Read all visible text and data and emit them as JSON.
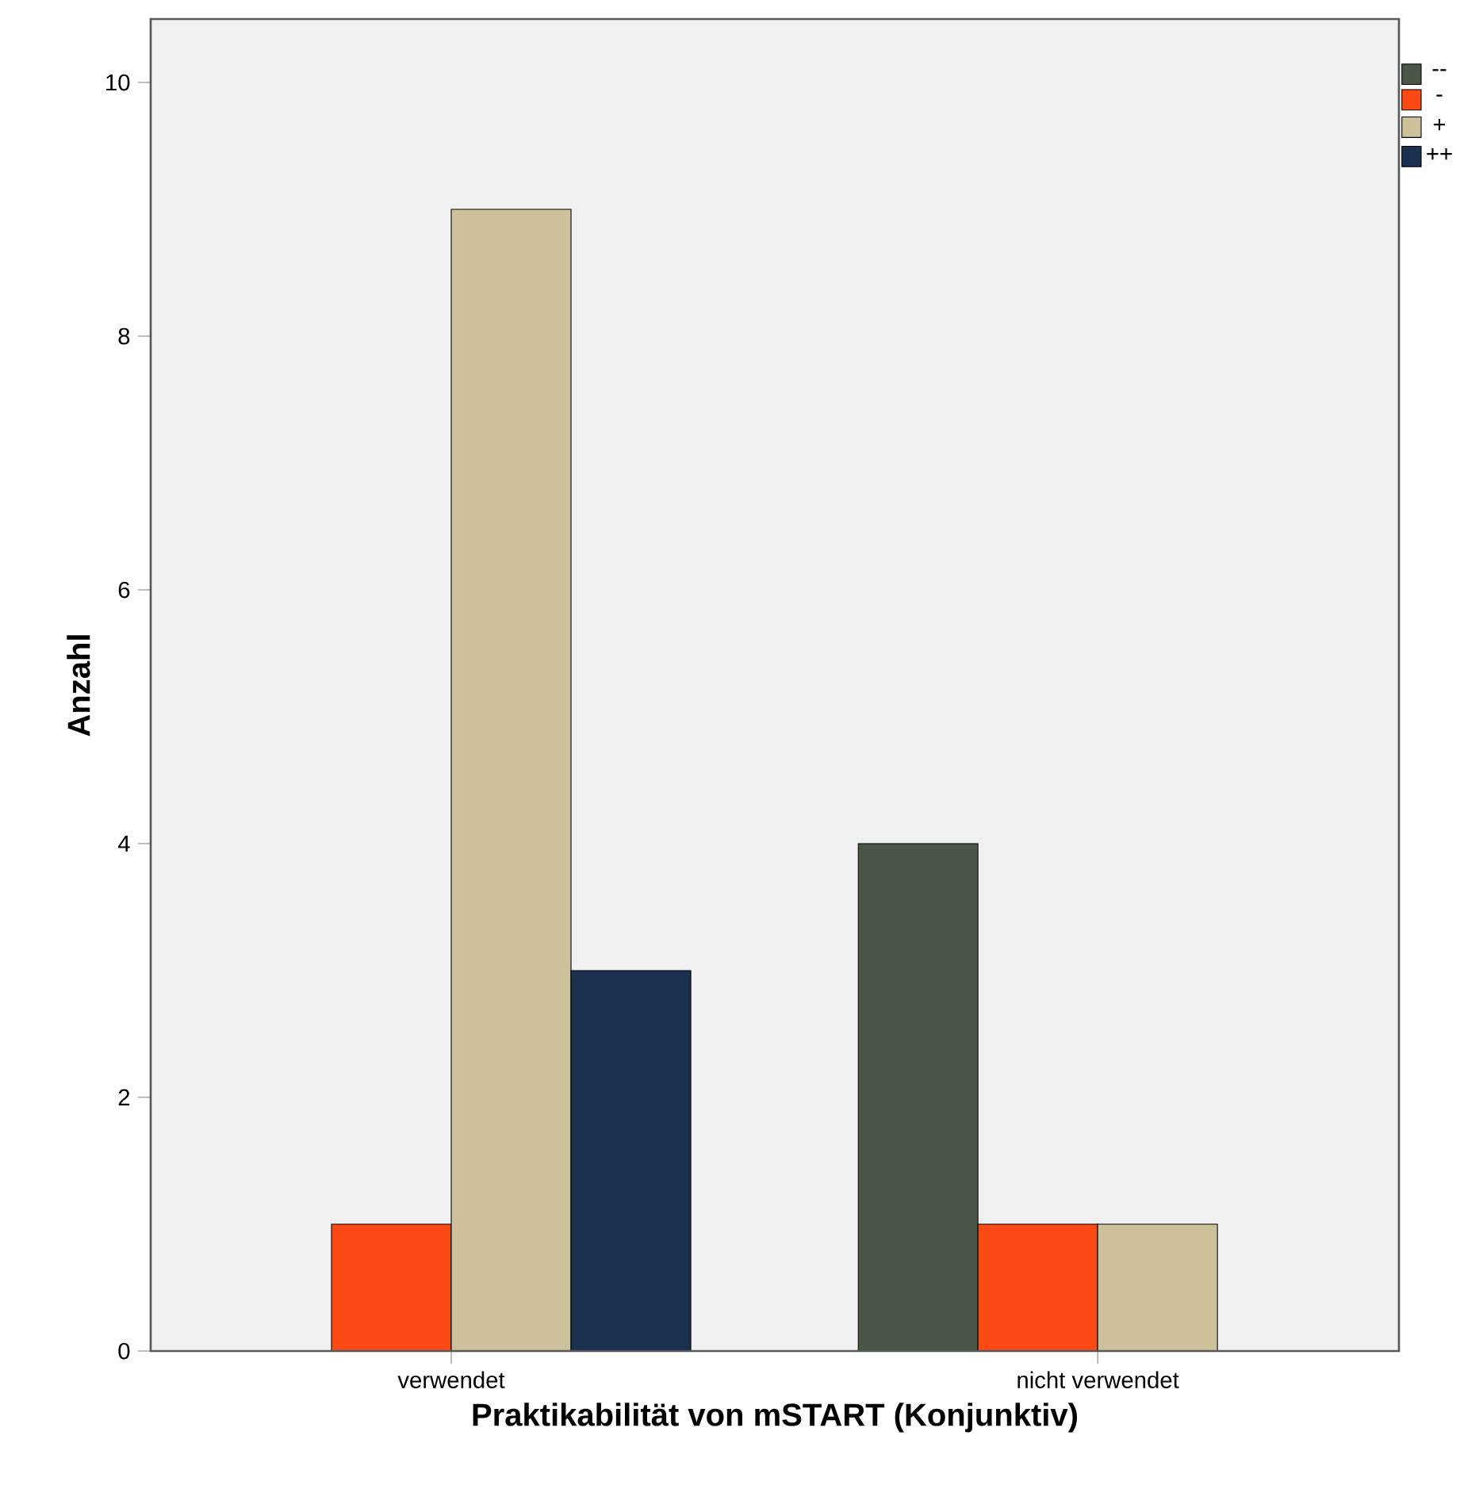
{
  "chart_data": {
    "type": "bar",
    "xlabel": "Praktikabilität von mSTART (Konjunktiv)",
    "ylabel": "Anzahl",
    "categories": [
      "verwendet",
      "nicht verwendet"
    ],
    "series": [
      {
        "name": "--",
        "color": "#4a5646",
        "values": [
          null,
          4
        ]
      },
      {
        "name": "-",
        "color": "#fc4a14",
        "values": [
          1,
          1
        ]
      },
      {
        "name": "+",
        "color": "#cdc19c",
        "values": [
          9,
          1
        ]
      },
      {
        "name": "++",
        "color": "#1b2f4f",
        "values": [
          3,
          null
        ]
      }
    ],
    "ylim": [
      0,
      10.5
    ],
    "yticks": [
      0,
      2,
      4,
      6,
      8,
      10
    ],
    "legend": "top right"
  }
}
